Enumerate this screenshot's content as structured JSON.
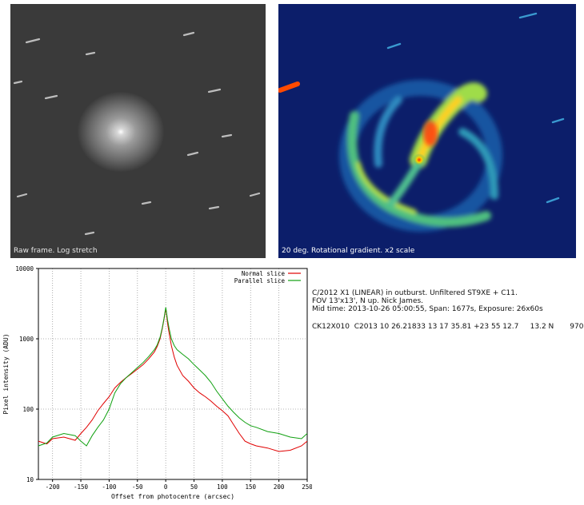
{
  "images": {
    "raw": {
      "caption": "Raw frame. Log stretch"
    },
    "rotational": {
      "caption": "20 deg. Rotational gradient. x2 scale"
    }
  },
  "notes": {
    "line1": "C/2012 X1 (LINEAR) in outburst. Unfiltered ST9XE + C11.",
    "line2": "FOV 13'x13', N up. Nick James.",
    "line3": "Mid time: 2013-10-26 05:00:55, Span: 1677s, Exposure: 26x60s",
    "observation": "CK12X010  C2013 10 26.21833 13 17 35.81 +23 55 12.7     13.2 N       970"
  },
  "chart_data": {
    "type": "line",
    "title": "",
    "xlabel": "Offset from photocentre (arcsec)",
    "ylabel": "Pixel intensity (ADU)",
    "xlim": [
      -225,
      250
    ],
    "ylim": [
      10,
      10000
    ],
    "yscale": "log",
    "grid": true,
    "legend": "top-right",
    "x_ticks": [
      -200,
      -150,
      -100,
      -50,
      0,
      50,
      100,
      150,
      200,
      250
    ],
    "y_ticks": [
      10,
      100,
      1000,
      10000
    ],
    "y_tick_labels": [
      "10",
      "100",
      "1000",
      "10000"
    ],
    "series": [
      {
        "name": "Normal slice",
        "color": "#e00000",
        "x": [
          -225,
          -210,
          -200,
          -180,
          -160,
          -150,
          -140,
          -130,
          -120,
          -110,
          -100,
          -90,
          -80,
          -70,
          -60,
          -50,
          -40,
          -30,
          -20,
          -15,
          -10,
          -6,
          -3,
          -1,
          0,
          1,
          3,
          6,
          10,
          15,
          20,
          30,
          40,
          50,
          60,
          70,
          80,
          90,
          100,
          110,
          120,
          130,
          140,
          150,
          160,
          180,
          200,
          220,
          240,
          250
        ],
        "y": [
          35,
          32,
          38,
          40,
          36,
          45,
          55,
          70,
          95,
          120,
          150,
          200,
          240,
          280,
          320,
          370,
          430,
          520,
          650,
          780,
          1000,
          1400,
          1900,
          2400,
          2600,
          2400,
          1700,
          1200,
          800,
          550,
          420,
          300,
          250,
          200,
          170,
          150,
          130,
          110,
          95,
          80,
          60,
          45,
          35,
          32,
          30,
          28,
          25,
          26,
          30,
          35
        ]
      },
      {
        "name": "Parallel slice",
        "color": "#10a010",
        "x": [
          -225,
          -210,
          -200,
          -180,
          -160,
          -150,
          -140,
          -130,
          -120,
          -110,
          -100,
          -90,
          -80,
          -70,
          -60,
          -50,
          -40,
          -30,
          -20,
          -15,
          -10,
          -6,
          -3,
          -1,
          0,
          1,
          3,
          6,
          10,
          15,
          20,
          30,
          40,
          50,
          60,
          70,
          80,
          90,
          100,
          110,
          120,
          130,
          140,
          150,
          160,
          180,
          200,
          220,
          240,
          250
        ],
        "y": [
          30,
          33,
          40,
          45,
          42,
          35,
          30,
          42,
          55,
          70,
          100,
          170,
          230,
          280,
          330,
          390,
          460,
          560,
          700,
          820,
          1050,
          1450,
          1950,
          2500,
          2800,
          2500,
          1900,
          1400,
          1000,
          800,
          700,
          600,
          520,
          430,
          360,
          300,
          240,
          180,
          140,
          110,
          90,
          75,
          65,
          58,
          55,
          48,
          45,
          40,
          38,
          45
        ]
      }
    ]
  }
}
